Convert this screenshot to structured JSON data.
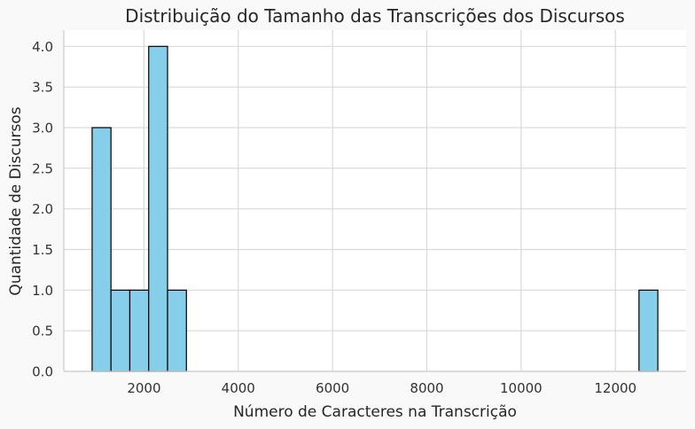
{
  "chart_data": {
    "type": "bar",
    "subtype": "histogram",
    "title": "Distribuição do Tamanho das Transcrições dos Discursos",
    "xlabel": "Número de Caracteres na Transcrição",
    "ylabel": "Quantidade de Discursos",
    "xlim": [
      300,
      13500
    ],
    "ylim": [
      0,
      4.2
    ],
    "xticks": [
      2000,
      4000,
      6000,
      8000,
      10000,
      12000
    ],
    "yticks": [
      "0.0",
      "0.5",
      "1.0",
      "1.5",
      "2.0",
      "2.5",
      "3.0",
      "3.5",
      "4.0"
    ],
    "bin_width": 400,
    "bins": [
      {
        "start": 900,
        "end": 1300,
        "count": 3
      },
      {
        "start": 1300,
        "end": 1700,
        "count": 1
      },
      {
        "start": 1700,
        "end": 2100,
        "count": 1
      },
      {
        "start": 2100,
        "end": 2500,
        "count": 4
      },
      {
        "start": 2500,
        "end": 2900,
        "count": 1
      },
      {
        "start": 12500,
        "end": 12900,
        "count": 1
      }
    ],
    "grid": true,
    "legend": "none",
    "colors": {
      "bar": "#87ceeb",
      "edge": "#000000",
      "grid": "#d9d9d9",
      "background": "#f9f9f9",
      "plot_background": "#ffffff"
    }
  }
}
